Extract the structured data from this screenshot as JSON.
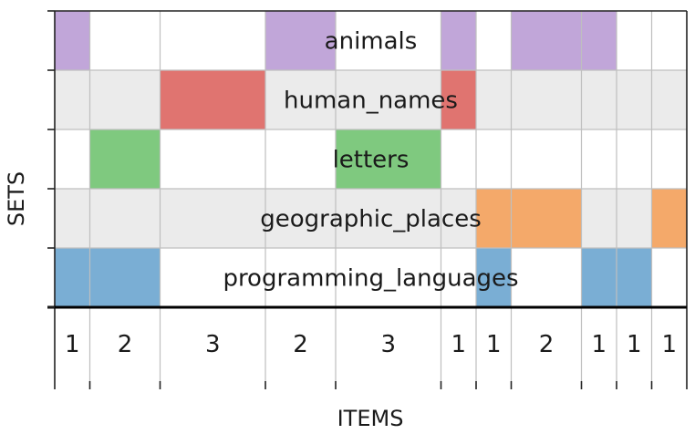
{
  "chart_data": {
    "type": "table",
    "title": "",
    "xlabel": "ITEMS",
    "ylabel": "SETS",
    "sets": [
      "animals",
      "human_names",
      "letters",
      "geographic_places",
      "programming_languages"
    ],
    "columns": [
      {
        "count": "1",
        "weight": 1,
        "members": [
          1,
          0,
          0,
          0,
          1
        ]
      },
      {
        "count": "2",
        "weight": 2,
        "members": [
          0,
          0,
          1,
          0,
          1
        ]
      },
      {
        "count": "3",
        "weight": 3,
        "members": [
          0,
          1,
          0,
          0,
          0
        ]
      },
      {
        "count": "2",
        "weight": 2,
        "members": [
          1,
          0,
          0,
          0,
          0
        ]
      },
      {
        "count": "3",
        "weight": 3,
        "members": [
          0,
          0,
          1,
          0,
          0
        ]
      },
      {
        "count": "1",
        "weight": 1,
        "members": [
          1,
          1,
          0,
          0,
          0
        ]
      },
      {
        "count": "1",
        "weight": 1,
        "members": [
          0,
          0,
          0,
          1,
          1
        ]
      },
      {
        "count": "2",
        "weight": 2,
        "members": [
          1,
          0,
          0,
          1,
          0
        ]
      },
      {
        "count": "1",
        "weight": 1,
        "members": [
          1,
          0,
          0,
          0,
          1
        ]
      },
      {
        "count": "1",
        "weight": 1,
        "members": [
          0,
          0,
          0,
          0,
          1
        ]
      },
      {
        "count": "1",
        "weight": 1,
        "members": [
          0,
          0,
          0,
          1,
          0
        ]
      }
    ],
    "colors": {
      "animals": "#c1a6d9",
      "human_names": "#e07470",
      "letters": "#7fc97f",
      "geographic_places": "#f4a96a",
      "programming_languages": "#7aaed4",
      "row_shade": "#ebebeb",
      "grid": "#bfbfbf"
    },
    "grid": true
  }
}
